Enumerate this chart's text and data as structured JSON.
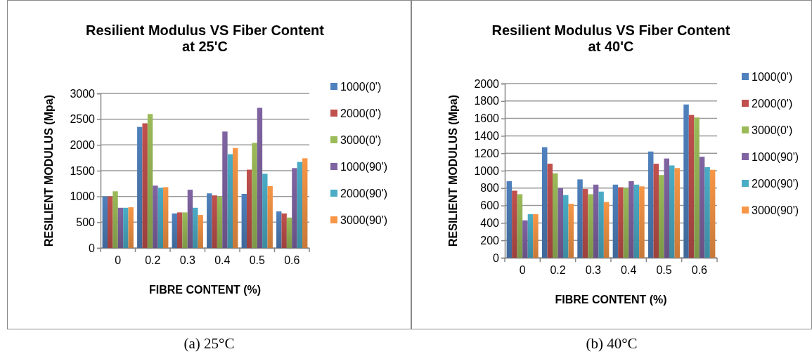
{
  "chart_data": [
    {
      "type": "bar",
      "title": "Resilient Modulus VS Fiber Content\nat 25'C",
      "xlabel": "FIBRE CONTENT (%)",
      "ylabel": "RESILIENT MODULUS (Mpa)",
      "categories": [
        "0",
        "0.2",
        "0.3",
        "0.4",
        "0.5",
        "0.6"
      ],
      "series": [
        {
          "name": "1000(0')",
          "color": "#4f81bd",
          "values": [
            1000,
            2350,
            670,
            1060,
            1050,
            710
          ]
        },
        {
          "name": "2000(0')",
          "color": "#c0504d",
          "values": [
            1000,
            2420,
            690,
            1020,
            1520,
            670
          ]
        },
        {
          "name": "3000(0')",
          "color": "#9bbb59",
          "values": [
            1100,
            2600,
            690,
            1000,
            2040,
            590
          ]
        },
        {
          "name": "1000(90')",
          "color": "#8064a2",
          "values": [
            780,
            1210,
            1130,
            2260,
            2720,
            1550
          ]
        },
        {
          "name": "2000(90')",
          "color": "#4bacc6",
          "values": [
            780,
            1170,
            780,
            1820,
            1440,
            1670
          ]
        },
        {
          "name": "3000(90')",
          "color": "#f79646",
          "values": [
            790,
            1180,
            640,
            1940,
            1200,
            1740
          ]
        }
      ],
      "ylim": [
        0,
        3000
      ],
      "yticks": [
        0,
        500,
        1000,
        1500,
        2000,
        2500,
        3000
      ],
      "grid": "y",
      "legend": "right",
      "annotations": [
        "(a) 25°C"
      ]
    },
    {
      "type": "bar",
      "title": "Resilient Modulus VS Fiber Content\nat 40'C",
      "xlabel": "FIBRE CONTENT (%)",
      "ylabel": "RESILIENT MODULUS (Mpa)",
      "categories": [
        "0",
        "0.2",
        "0.3",
        "0.4",
        "0.5",
        "0.6"
      ],
      "series": [
        {
          "name": "1000(0')",
          "color": "#4f81bd",
          "values": [
            880,
            1270,
            900,
            840,
            1220,
            1760
          ]
        },
        {
          "name": "2000(0')",
          "color": "#c0504d",
          "values": [
            770,
            1080,
            790,
            810,
            1080,
            1640
          ]
        },
        {
          "name": "3000(0')",
          "color": "#9bbb59",
          "values": [
            730,
            970,
            730,
            800,
            950,
            1610
          ]
        },
        {
          "name": "1000(90')",
          "color": "#8064a2",
          "values": [
            430,
            800,
            840,
            880,
            1140,
            1160
          ]
        },
        {
          "name": "2000(90')",
          "color": "#4bacc6",
          "values": [
            500,
            720,
            760,
            840,
            1060,
            1040
          ]
        },
        {
          "name": "3000(90')",
          "color": "#f79646",
          "values": [
            500,
            620,
            640,
            820,
            1030,
            1010
          ]
        }
      ],
      "ylim": [
        0,
        2000
      ],
      "yticks": [
        0,
        200,
        400,
        600,
        800,
        1000,
        1200,
        1400,
        1600,
        1800,
        2000
      ],
      "grid": "y",
      "legend": "right",
      "annotations": [
        "(b) 40°C"
      ]
    }
  ]
}
